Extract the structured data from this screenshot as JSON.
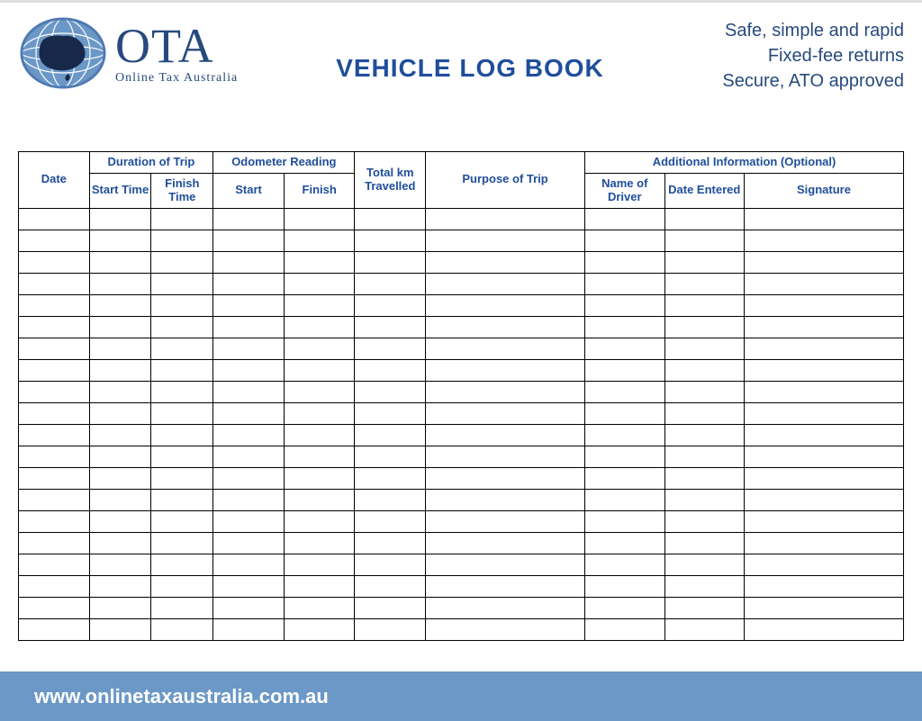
{
  "brand": {
    "name_big": "OTA",
    "name_sub": "Online Tax Australia",
    "logo_color_main": "#4f7ab2",
    "logo_color_dark": "#17284a"
  },
  "title": "VEHICLE LOG BOOK",
  "taglines": {
    "line1": "Safe, simple and rapid",
    "line2": "Fixed-fee returns",
    "line3": "Secure, ATO approved"
  },
  "table": {
    "header_text_color": "#1f4e9b",
    "border_color": "#000000",
    "columns": {
      "date": "Date",
      "duration_group": "Duration of Trip",
      "start_time": "Start Time",
      "finish_time": "Finish Time",
      "odometer_group": "Odometer Reading",
      "odo_start": "Start",
      "odo_finish": "Finish",
      "total_km": "Total km Travelled",
      "purpose": "Purpose of Trip",
      "additional_group": "Additional Information (Optional)",
      "driver": "Name of Driver",
      "date_entered": "Date Entered",
      "signature": "Signature"
    },
    "col_widths_pct": [
      8,
      7,
      7,
      8,
      8,
      8,
      18,
      9,
      9,
      18
    ],
    "empty_rows": 20
  },
  "footer": {
    "url": "www.onlinetaxaustralia.com.au",
    "bg_color": "#6b98c6",
    "text_color": "#ffffff"
  },
  "page_bg": "#ffffff"
}
